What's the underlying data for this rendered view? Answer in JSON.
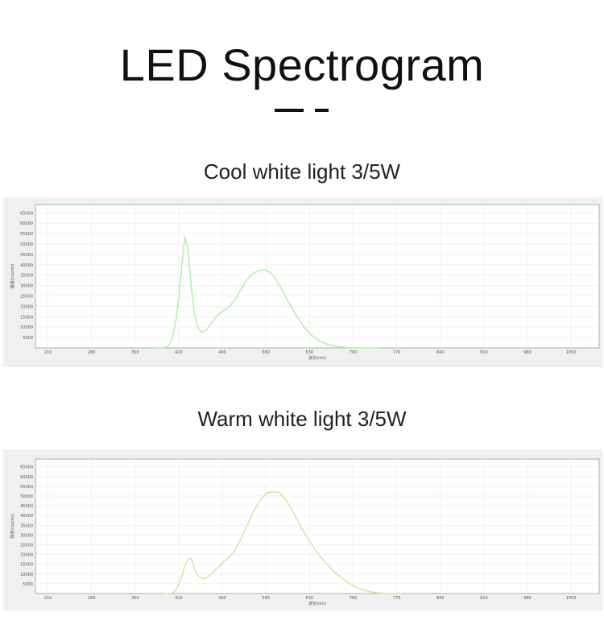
{
  "page": {
    "title": "LED Spectrogram"
  },
  "chart_data": [
    {
      "type": "line",
      "heading": "Cool white light 3/5W",
      "xlabel": "波长(nm)",
      "ylabel": "强度(counts)",
      "xlim": [
        190,
        1095
      ],
      "ylim": [
        0,
        69000
      ],
      "xticks": [
        210,
        280,
        350,
        420,
        490,
        560,
        630,
        700,
        770,
        840,
        910,
        980,
        1050
      ],
      "yticks": [
        5000,
        10000,
        15000,
        20000,
        25000,
        30000,
        35000,
        40000,
        45000,
        50000,
        55000,
        60000,
        65000
      ],
      "grid": true,
      "line_color": "#b5efb0",
      "series": [
        {
          "x": [
            380,
            390,
            400,
            405,
            410,
            415,
            420,
            425,
            430,
            435,
            440,
            445,
            450,
            455,
            460,
            465,
            470,
            480,
            490,
            500,
            510,
            520,
            530,
            540,
            550,
            560,
            570,
            575,
            580,
            590,
            600,
            610,
            620,
            630,
            640,
            650,
            660,
            670,
            680,
            690,
            700,
            710,
            720,
            740
          ],
          "y": [
            0,
            0,
            300,
            1500,
            5000,
            12000,
            24000,
            40000,
            53500,
            47000,
            30000,
            17000,
            10500,
            8000,
            7800,
            9000,
            11000,
            15000,
            17500,
            19500,
            23000,
            28000,
            33000,
            36000,
            37500,
            37500,
            35500,
            33500,
            31000,
            25500,
            20000,
            15000,
            10500,
            7000,
            4500,
            2800,
            1600,
            900,
            500,
            200,
            100,
            0,
            0,
            0
          ]
        }
      ]
    },
    {
      "type": "line",
      "heading": "Warm white light 3/5W",
      "xlabel": "波长(nm)",
      "ylabel": "强度(counts)",
      "xlim": [
        190,
        1095
      ],
      "ylim": [
        0,
        69000
      ],
      "xticks": [
        210,
        280,
        350,
        420,
        490,
        560,
        630,
        700,
        770,
        840,
        910,
        980,
        1050
      ],
      "yticks": [
        5000,
        10000,
        15000,
        20000,
        25000,
        30000,
        35000,
        40000,
        45000,
        50000,
        55000,
        60000,
        65000
      ],
      "grid": true,
      "line_color": "#dde3a2",
      "series": [
        {
          "x": [
            395,
            400,
            410,
            415,
            420,
            425,
            430,
            435,
            440,
            445,
            450,
            455,
            460,
            465,
            470,
            480,
            490,
            500,
            510,
            520,
            530,
            540,
            550,
            560,
            570,
            580,
            590,
            600,
            610,
            620,
            630,
            640,
            650,
            660,
            670,
            680,
            690,
            700,
            710,
            720,
            730,
            740,
            760,
            770,
            780
          ],
          "y": [
            0,
            0,
            200,
            1500,
            4500,
            9000,
            14000,
            17500,
            18000,
            13000,
            9500,
            8000,
            7500,
            8000,
            9500,
            12500,
            15500,
            18500,
            22000,
            28000,
            35000,
            42000,
            47500,
            51500,
            52000,
            52000,
            49000,
            44000,
            38000,
            32000,
            27000,
            22000,
            18000,
            14500,
            11000,
            8500,
            6000,
            4000,
            2500,
            1500,
            800,
            300,
            0,
            0,
            0
          ]
        }
      ]
    }
  ]
}
